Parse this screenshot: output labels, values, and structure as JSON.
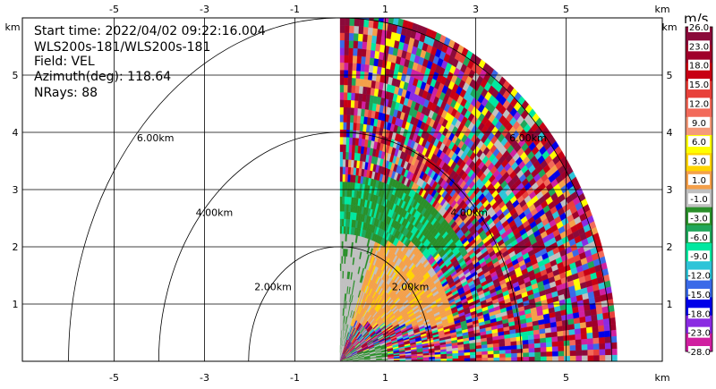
{
  "info": {
    "start_time": "Start time: 2022/04/02 09:22:16.004",
    "instrument": "WLS200s-181/WLS200s-181",
    "field": "Field: VEL",
    "azimuth": "Azimuth(deg): 118.64",
    "nrays": "NRays: 88"
  },
  "colorbar": {
    "unit": "m/s",
    "levels": [
      "26.0",
      "23.0",
      "18.0",
      "15.0",
      "12.0",
      "9.0",
      "6.0",
      "3.0",
      "1.0",
      "-1.0",
      "-3.0",
      "-6.0",
      "-9.0",
      "-12.0",
      "-15.0",
      "-18.0",
      "-23.0",
      "-28.0"
    ],
    "colors": [
      "#8b0a3a",
      "#a0002a",
      "#c80014",
      "#e8403a",
      "#f26a5a",
      "#f49a7a",
      "#ffff00",
      "#ffd400",
      "#f4a04a",
      "#c0c0c0",
      "#2a8f2a",
      "#1fa65a",
      "#00e8a0",
      "#2ec4d8",
      "#3a6ae8",
      "#0000e8",
      "#8a2be2",
      "#d020a0"
    ]
  },
  "chart_data": {
    "type": "heatmap",
    "title": "",
    "xlabel": "km",
    "ylabel": "km",
    "xlim": [
      -6.0,
      6.2
    ],
    "ylim": [
      0.0,
      6.0
    ],
    "x_ticks": [
      -5,
      -3,
      -1,
      1,
      3,
      5
    ],
    "y_ticks": [
      1,
      2,
      3,
      4,
      5
    ],
    "tick_unit": "km",
    "range_rings": [
      {
        "radius_km": 2.0,
        "label": "2.00km"
      },
      {
        "radius_km": 4.0,
        "label": "4.00km"
      },
      {
        "radius_km": 6.0,
        "label": "6.00km"
      }
    ],
    "sector": {
      "azimuth_start_deg": 0,
      "azimuth_end_deg": 90,
      "max_range_km": 6.0
    },
    "grid": true
  }
}
